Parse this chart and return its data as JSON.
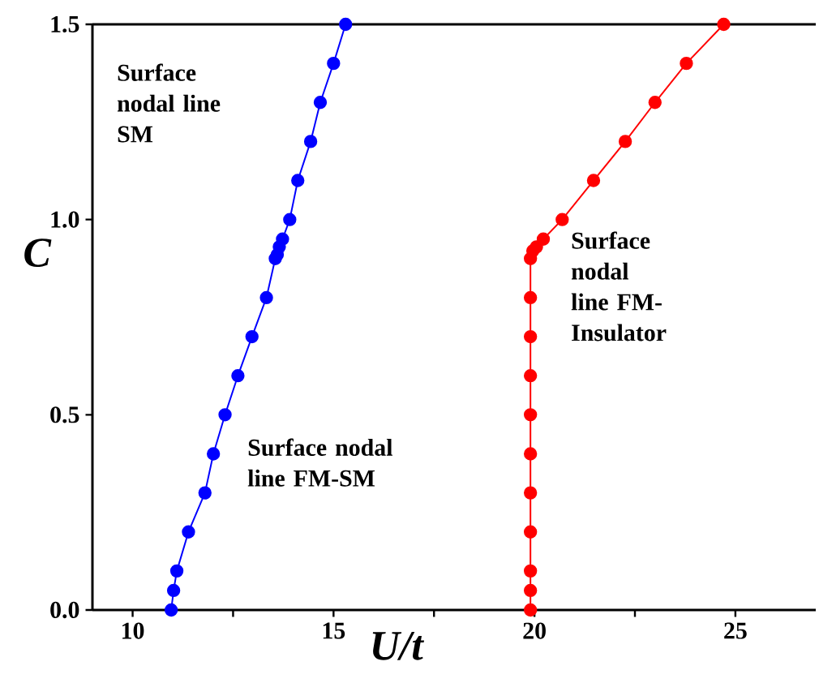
{
  "chart_data": {
    "type": "line",
    "xlabel": "U/t",
    "ylabel": "C",
    "xlim": [
      9,
      27
    ],
    "ylim": [
      0,
      1.5
    ],
    "xticks": [
      10,
      {
        "value": 12.5,
        "label": null
      },
      15,
      {
        "value": 17.5,
        "label": null
      },
      20,
      {
        "value": 22.5,
        "label": null
      },
      25
    ],
    "yticks": [
      {
        "value": 0,
        "label": "0.0"
      },
      {
        "value": 0.5,
        "label": "0.5"
      },
      {
        "value": 1,
        "label": "1.0"
      },
      {
        "value": 1.5,
        "label": "1.5"
      }
    ],
    "marker": "circle",
    "line_style": "solid",
    "series": [
      {
        "color": "#0000ff",
        "x": [
          10.96,
          11.02,
          11.1,
          11.39,
          11.8,
          12.01,
          12.3,
          12.62,
          12.97,
          13.33,
          13.55,
          13.6,
          13.65,
          13.73,
          13.91,
          14.11,
          14.43,
          14.67,
          15.0,
          15.3
        ],
        "values": [
          0,
          0.05,
          0.1,
          0.2,
          0.3,
          0.4,
          0.5,
          0.6,
          0.7,
          0.8,
          0.9,
          0.91,
          0.93,
          0.95,
          1.0,
          1.1,
          1.2,
          1.3,
          1.4,
          1.5
        ]
      },
      {
        "color": "#ff0000",
        "x": [
          19.9,
          19.9,
          19.9,
          19.9,
          19.9,
          19.9,
          19.9,
          19.9,
          19.9,
          19.9,
          19.9,
          19.96,
          20.05,
          20.22,
          20.69,
          21.47,
          22.26,
          23.0,
          23.78,
          24.71
        ],
        "values": [
          0,
          0.05,
          0.1,
          0.2,
          0.3,
          0.4,
          0.5,
          0.6,
          0.7,
          0.8,
          0.9,
          0.92,
          0.93,
          0.95,
          1.0,
          1.1,
          1.2,
          1.3,
          1.4,
          1.5
        ]
      }
    ],
    "annotations": [
      "Surface nodal line SM",
      "Surface nodal line FM-SM",
      "Surface nodal line FM-Insulator"
    ]
  }
}
